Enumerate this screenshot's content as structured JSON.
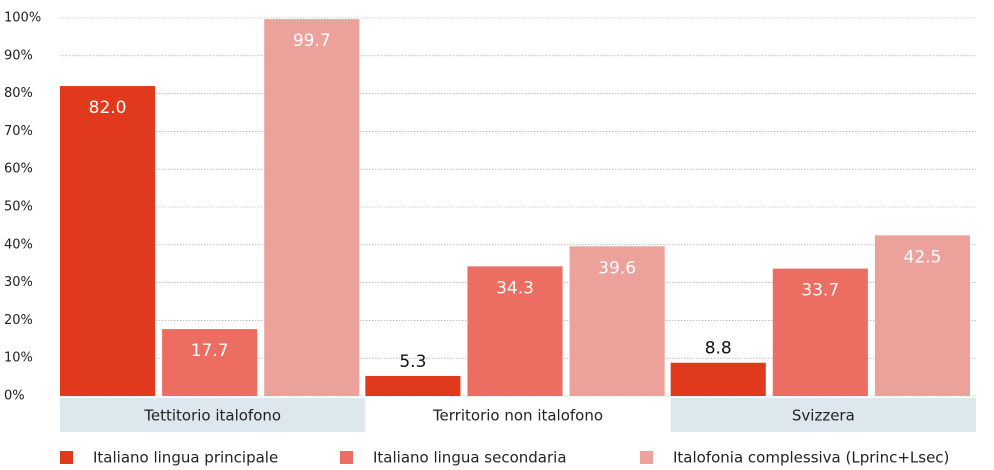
{
  "chart_data": {
    "type": "bar",
    "categories": [
      "Tettitorio italofono",
      "Territorio non italofono",
      "Svizzera"
    ],
    "series": [
      {
        "name": "Italiano lingua principale",
        "color": "#e0391c",
        "values": [
          82.0,
          5.3,
          8.8
        ],
        "value_labels": [
          "82.0",
          "5.3",
          "8.8"
        ]
      },
      {
        "name": "Italiano lingua secondaria",
        "color": "#ec6e62",
        "values": [
          17.7,
          34.3,
          33.7
        ],
        "value_labels": [
          "17.7",
          "34.3",
          "33.7"
        ]
      },
      {
        "name": "Italofonia complessiva (Lprinc+Lsec)",
        "color": "#eda19b",
        "values": [
          99.7,
          39.6,
          42.5
        ],
        "value_labels": [
          "99.7",
          "39.6",
          "42.5"
        ]
      }
    ],
    "ylim": [
      0,
      100
    ],
    "yticks": [
      {
        "value": 0,
        "label": "0%"
      },
      {
        "value": 10,
        "label": "10%"
      },
      {
        "value": 20,
        "label": "20%"
      },
      {
        "value": 30,
        "label": "30%"
      },
      {
        "value": 40,
        "label": "40%"
      },
      {
        "value": 50,
        "label": "50%"
      },
      {
        "value": 60,
        "label": "60%"
      },
      {
        "value": 70,
        "label": "70%"
      },
      {
        "value": 80,
        "label": "80%"
      },
      {
        "value": 90,
        "label": "90%"
      },
      {
        "value": 100,
        "label": "100%"
      }
    ],
    "grid": true,
    "legend": "bottom"
  }
}
